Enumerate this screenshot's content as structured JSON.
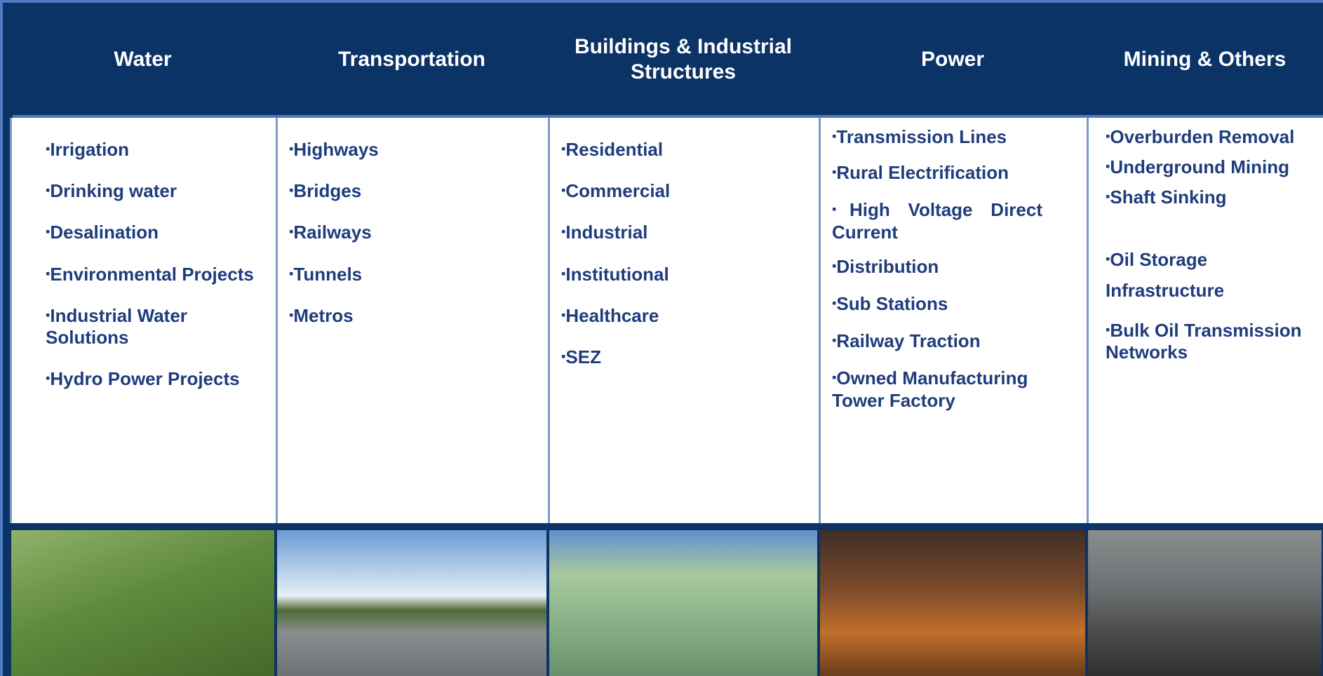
{
  "columns": [
    {
      "title": "Water",
      "items": [
        "Irrigation",
        "Drinking water",
        "Desalination",
        "Environmental Projects",
        "Industrial Water Solutions",
        "Hydro Power Projects"
      ]
    },
    {
      "title": "Transportation",
      "items": [
        "Highways",
        "Bridges",
        "Railways",
        "Tunnels",
        "Metros"
      ]
    },
    {
      "title": "Buildings & Industrial Structures",
      "items": [
        "Residential",
        "Commercial",
        "Industrial",
        "Institutional",
        "Healthcare",
        "SEZ"
      ]
    },
    {
      "title": "Power",
      "items": [
        "Transmission Lines",
        "Rural Electrification",
        "High Voltage Direct Current",
        "Distribution",
        "Sub Stations",
        "Railway Traction",
        "Owned Manufacturing Tower Factory"
      ]
    },
    {
      "title": "Mining & Others",
      "items": [
        "Overburden Removal",
        "Underground Mining",
        "Shaft Sinking",
        "Oil Storage Infrastructure",
        "Bulk Oil Transmission Networks"
      ]
    }
  ]
}
